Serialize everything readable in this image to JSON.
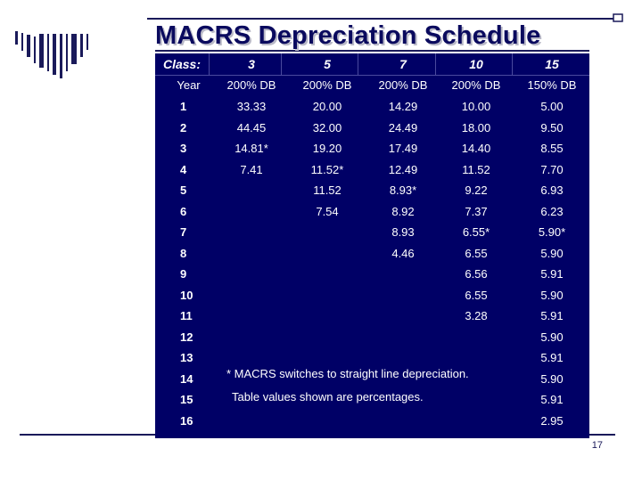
{
  "slide": {
    "title": "MACRS Depreciation Schedule",
    "page_number": "17"
  },
  "table": {
    "header": {
      "class_label": "Class:",
      "classes": [
        "3",
        "5",
        "7",
        "10",
        "15"
      ]
    },
    "method_row": {
      "label": "Year",
      "methods": [
        "200% DB",
        "200% DB",
        "200% DB",
        "200% DB",
        "150% DB"
      ]
    },
    "rows": [
      {
        "year": "1",
        "values": [
          "33.33",
          "20.00",
          "14.29",
          "10.00",
          "5.00"
        ]
      },
      {
        "year": "2",
        "values": [
          "44.45",
          "32.00",
          "24.49",
          "18.00",
          "9.50"
        ]
      },
      {
        "year": "3",
        "values": [
          "14.81*",
          "19.20",
          "17.49",
          "14.40",
          "8.55"
        ]
      },
      {
        "year": "4",
        "values": [
          "7.41",
          "11.52*",
          "12.49",
          "11.52",
          "7.70"
        ]
      },
      {
        "year": "5",
        "values": [
          "",
          "11.52",
          "8.93*",
          "9.22",
          "6.93"
        ]
      },
      {
        "year": "6",
        "values": [
          "",
          "7.54",
          "8.92",
          "7.37",
          "6.23"
        ]
      },
      {
        "year": "7",
        "values": [
          "",
          "",
          "8.93",
          "6.55*",
          "5.90*"
        ]
      },
      {
        "year": "8",
        "values": [
          "",
          "",
          "4.46",
          "6.55",
          "5.90"
        ]
      },
      {
        "year": "9",
        "values": [
          "",
          "",
          "",
          "6.56",
          "5.91"
        ]
      },
      {
        "year": "10",
        "values": [
          "",
          "",
          "",
          "6.55",
          "5.90"
        ]
      },
      {
        "year": "11",
        "values": [
          "",
          "",
          "",
          "3.28",
          "5.91"
        ]
      },
      {
        "year": "12",
        "values": [
          "",
          "",
          "",
          "",
          "5.90"
        ]
      },
      {
        "year": "13",
        "values": [
          "",
          "",
          "",
          "",
          "5.91"
        ]
      },
      {
        "year": "14",
        "values": [
          "",
          "",
          "",
          "",
          "5.90"
        ]
      },
      {
        "year": "15",
        "values": [
          "",
          "",
          "",
          "",
          "5.91"
        ]
      },
      {
        "year": "16",
        "values": [
          "",
          "",
          "",
          "",
          "2.95"
        ]
      }
    ],
    "notes": {
      "switch_note": "* MACRS switches to straight line depreciation.",
      "percent_note": "Table values shown are percentages."
    }
  },
  "colors": {
    "table_background": "#000066",
    "title_text": "#0a0a5e",
    "rule_color": "#1a1a5a"
  }
}
